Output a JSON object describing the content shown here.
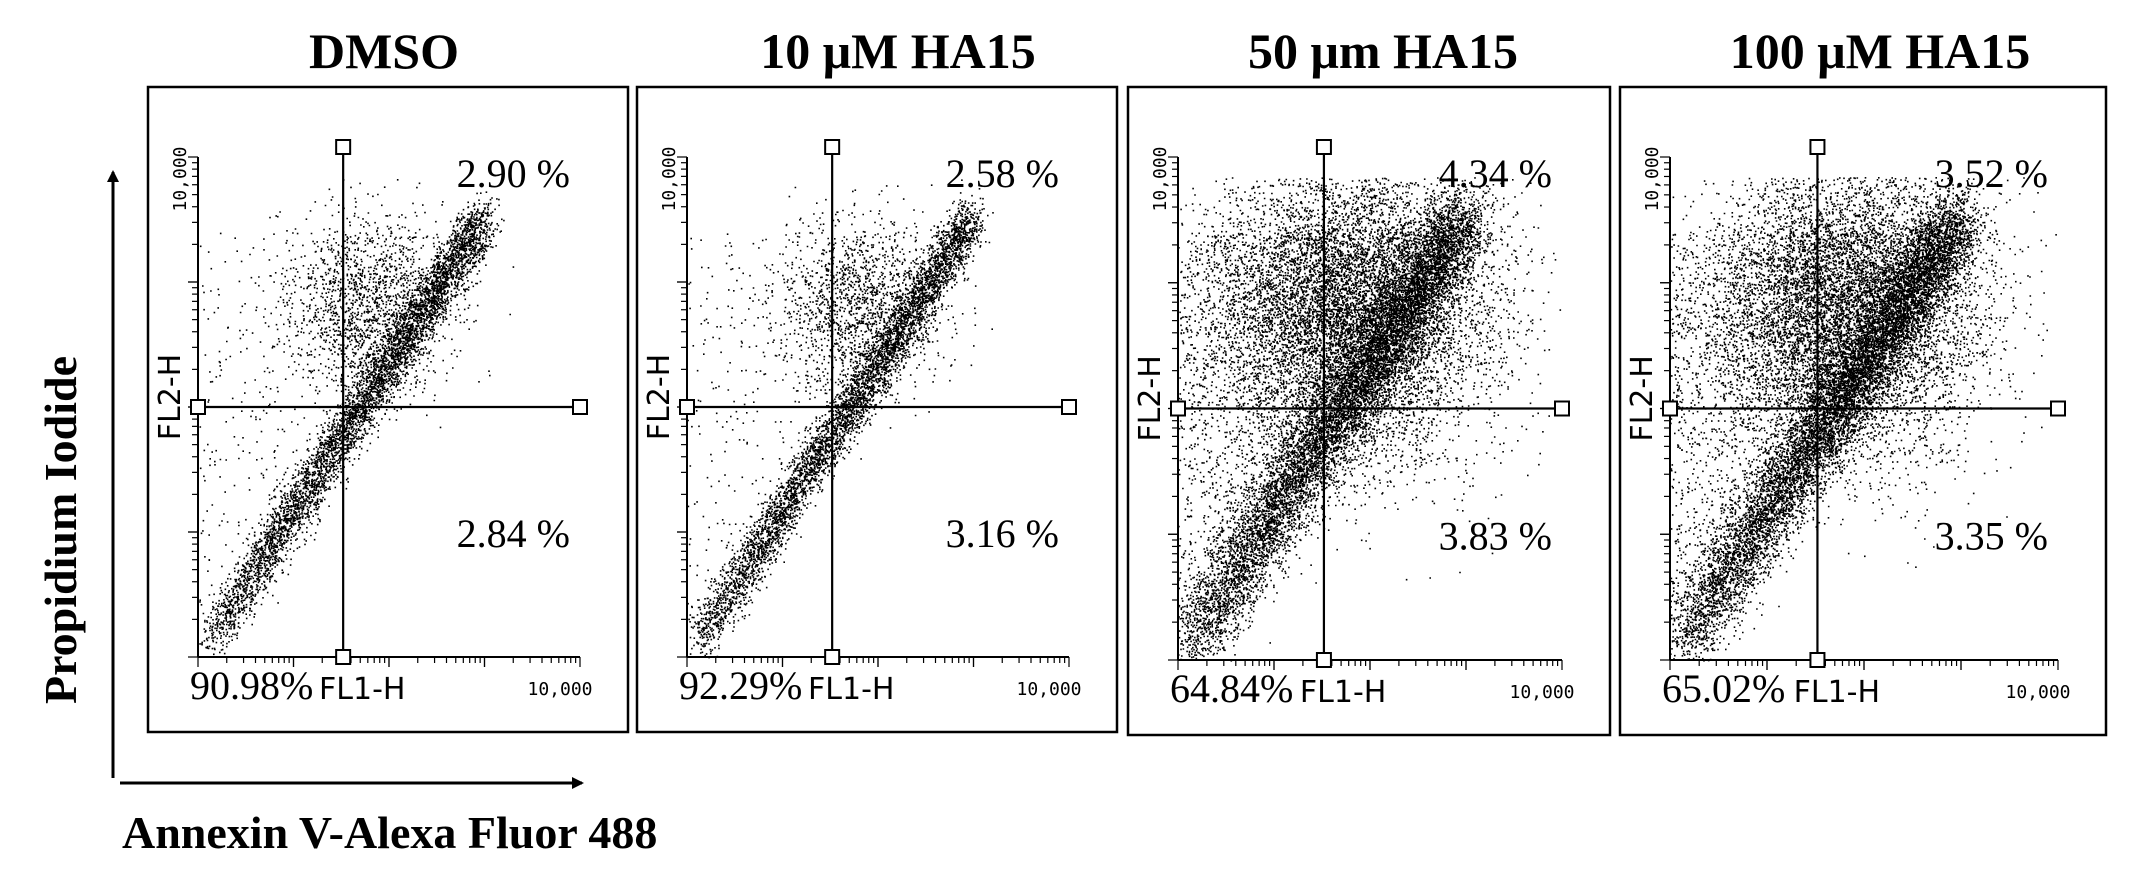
{
  "figure": {
    "y_axis_label": "Propidium Iodide",
    "x_axis_label": "Annexin V-Alexa Fluor 488"
  },
  "chart_data": [
    {
      "type": "scatter",
      "title": "DMSO",
      "xlabel": "FL1-H",
      "ylabel": "FL2-H",
      "x_tick_max": "10,000",
      "y_tick_max": "10,000",
      "log_scale": true,
      "quadrants": {
        "upper_right": "2.90 %",
        "lower_right": "2.84 %",
        "lower_left": "90.98%"
      }
    },
    {
      "type": "scatter",
      "title": "10 μM HA15",
      "xlabel": "FL1-H",
      "ylabel": "FL2-H",
      "x_tick_max": "10,000",
      "y_tick_max": "10,000",
      "log_scale": true,
      "quadrants": {
        "upper_right": "2.58 %",
        "lower_right": "3.16 %",
        "lower_left": "92.29%"
      }
    },
    {
      "type": "scatter",
      "title": "50 μm HA15",
      "xlabel": "FL1-H",
      "ylabel": "FL2-H",
      "x_tick_max": "10,000",
      "y_tick_max": "10,000",
      "log_scale": true,
      "quadrants": {
        "upper_right": "4.34 %",
        "lower_right": "3.83 %",
        "lower_left": "64.84%"
      }
    },
    {
      "type": "scatter",
      "title": "100 μM HA15",
      "xlabel": "FL1-H",
      "ylabel": "FL2-H",
      "x_tick_max": "10,000",
      "y_tick_max": "10,000",
      "log_scale": true,
      "quadrants": {
        "upper_right": "3.52 %",
        "lower_right": "3.35 %",
        "lower_left": "65.02%"
      }
    }
  ]
}
